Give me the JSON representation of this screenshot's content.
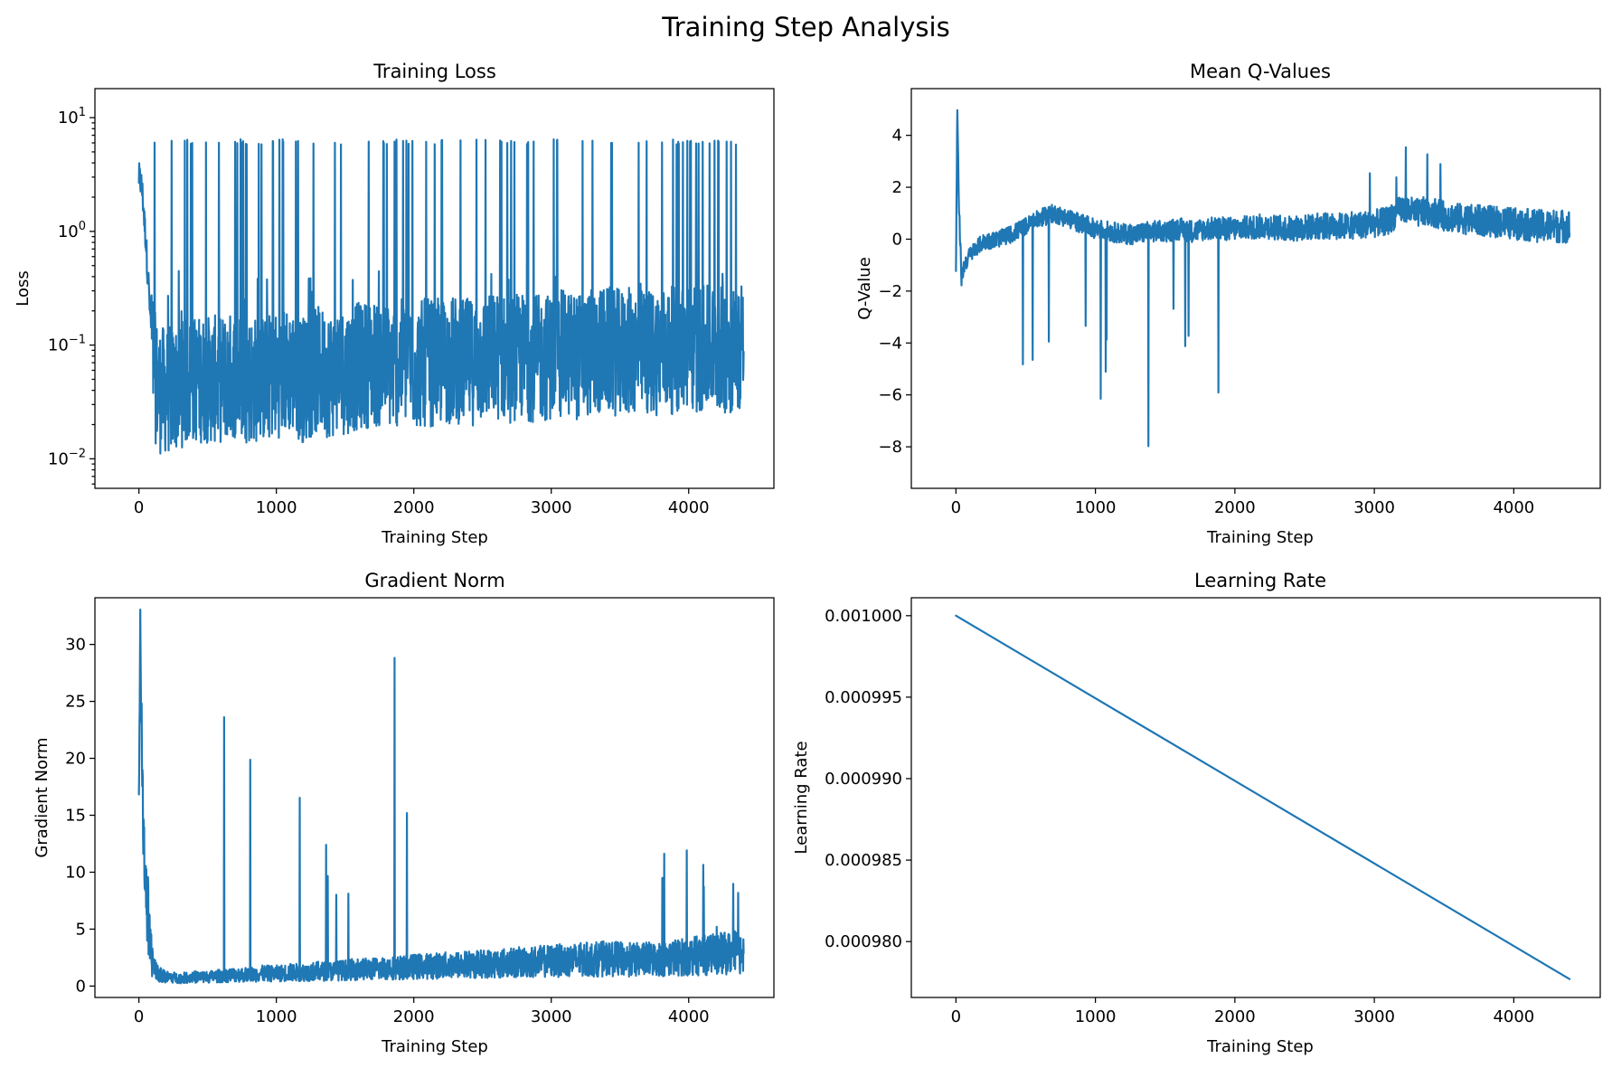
{
  "figure": {
    "title": "Training Step Analysis",
    "line_color": "#1f77b4"
  },
  "chart_data": [
    {
      "id": "loss",
      "type": "line",
      "title": "Training Loss",
      "xlabel": "Training Step",
      "ylabel": "Loss",
      "yscale": "log",
      "xlim": [
        -320,
        4620
      ],
      "ylim": [
        0.0055,
        18
      ],
      "xticks": [
        0,
        1000,
        2000,
        3000,
        4000
      ],
      "yticks": [
        {
          "value": 0.01,
          "base": "10",
          "exp": "−2"
        },
        {
          "value": 0.1,
          "base": "10",
          "exp": "−1"
        },
        {
          "value": 1,
          "base": "10",
          "exp": "0"
        },
        {
          "value": 10,
          "base": "10",
          "exp": "1"
        }
      ],
      "series": [
        {
          "x": [
            0,
            20,
            40,
            60,
            80,
            100,
            120,
            150,
            200,
            250,
            300,
            400,
            500,
            600,
            700,
            800,
            900,
            1000,
            1100,
            1200,
            1300,
            1400,
            1500,
            1600,
            1700,
            1800,
            1900,
            2000,
            2100,
            2200,
            2300,
            2400,
            2500,
            2600,
            2700,
            2800,
            2900,
            3000,
            3100,
            3200,
            3300,
            3400,
            3500,
            3600,
            3700,
            3800,
            3900,
            4000,
            4100,
            4200,
            4300,
            4400
          ],
          "values": [
            3.0,
            2.5,
            1.2,
            0.5,
            0.2,
            0.08,
            0.05,
            0.04,
            0.04,
            0.04,
            0.045,
            0.05,
            0.05,
            0.05,
            0.055,
            0.05,
            0.05,
            0.055,
            0.06,
            0.05,
            0.06,
            0.055,
            0.06,
            0.065,
            0.07,
            0.065,
            0.07,
            0.065,
            0.07,
            0.07,
            0.075,
            0.07,
            0.075,
            0.08,
            0.075,
            0.08,
            0.075,
            0.08,
            0.085,
            0.08,
            0.085,
            0.09,
            0.085,
            0.09,
            0.085,
            0.09,
            0.09,
            0.095,
            0.09,
            0.095,
            0.09,
            0.1
          ]
        }
      ]
    },
    {
      "id": "qvalues",
      "type": "line",
      "title": "Mean Q-Values",
      "xlabel": "Training Step",
      "ylabel": "Q-Value",
      "yscale": "linear",
      "xlim": [
        -320,
        4620
      ],
      "ylim": [
        -9.6,
        5.8
      ],
      "xticks": [
        0,
        1000,
        2000,
        3000,
        4000
      ],
      "yticks": [
        -8,
        -6,
        -4,
        -2,
        0,
        2,
        4
      ],
      "series": [
        {
          "x": [
            0,
            10,
            20,
            40,
            60,
            80,
            100,
            150,
            200,
            300,
            400,
            500,
            600,
            700,
            800,
            900,
            1000,
            1100,
            1200,
            1300,
            1400,
            1500,
            1600,
            1700,
            1800,
            1900,
            2000,
            2200,
            2400,
            2600,
            2800,
            3000,
            3100,
            3200,
            3300,
            3400,
            3500,
            3600,
            3800,
            4000,
            4200,
            4400
          ],
          "values": [
            -1.2,
            5.1,
            1.5,
            -1.5,
            -1.0,
            -0.8,
            -0.6,
            -0.3,
            -0.1,
            0.0,
            0.2,
            0.5,
            0.8,
            1.0,
            0.8,
            0.6,
            0.4,
            0.3,
            0.2,
            0.2,
            0.3,
            0.3,
            0.4,
            0.3,
            0.4,
            0.4,
            0.4,
            0.5,
            0.4,
            0.5,
            0.5,
            0.6,
            0.7,
            1.2,
            1.0,
            1.1,
            0.9,
            0.8,
            0.7,
            0.6,
            0.5,
            0.5
          ]
        }
      ]
    },
    {
      "id": "gradnorm",
      "type": "line",
      "title": "Gradient Norm",
      "xlabel": "Training Step",
      "ylabel": "Gradient Norm",
      "yscale": "linear",
      "xlim": [
        -320,
        4620
      ],
      "ylim": [
        -1.0,
        34.1
      ],
      "xticks": [
        0,
        1000,
        2000,
        3000,
        4000
      ],
      "yticks": [
        0,
        5,
        10,
        15,
        20,
        25,
        30
      ],
      "series": [
        {
          "x": [
            0,
            10,
            20,
            30,
            40,
            60,
            80,
            100,
            150,
            200,
            300,
            400,
            500,
            600,
            700,
            800,
            900,
            1000,
            1100,
            1200,
            1300,
            1400,
            1500,
            1600,
            1700,
            1800,
            1900,
            2000,
            2200,
            2400,
            2600,
            2800,
            3000,
            3200,
            3400,
            3600,
            3800,
            4000,
            4200,
            4400
          ],
          "values": [
            16.5,
            31.6,
            22.0,
            14.0,
            11.5,
            7.0,
            3.5,
            2.0,
            1.0,
            0.8,
            0.7,
            0.8,
            0.8,
            0.9,
            1.0,
            1.0,
            1.1,
            1.1,
            1.2,
            1.2,
            1.3,
            1.3,
            1.4,
            1.5,
            1.5,
            1.6,
            1.6,
            1.7,
            1.8,
            1.9,
            2.0,
            2.1,
            2.2,
            2.3,
            2.4,
            2.3,
            2.4,
            2.6,
            2.8,
            3.0
          ]
        }
      ]
    },
    {
      "id": "lr",
      "type": "line",
      "title": "Learning Rate",
      "xlabel": "Training Step",
      "ylabel": "Learning Rate",
      "yscale": "linear",
      "xlim": [
        -320,
        4620
      ],
      "ylim": [
        0.00097657,
        0.0010011
      ],
      "xticks": [
        0,
        1000,
        2000,
        3000,
        4000
      ],
      "yticks": [
        0.00098,
        0.000985,
        0.00099,
        0.000995,
        0.001
      ],
      "ytick_labels": [
        "0.000980",
        "0.000985",
        "0.000990",
        "0.000995",
        "0.001000"
      ],
      "series": [
        {
          "x": [
            0,
            4400
          ],
          "values": [
            0.001,
            0.0009777
          ]
        }
      ]
    }
  ]
}
